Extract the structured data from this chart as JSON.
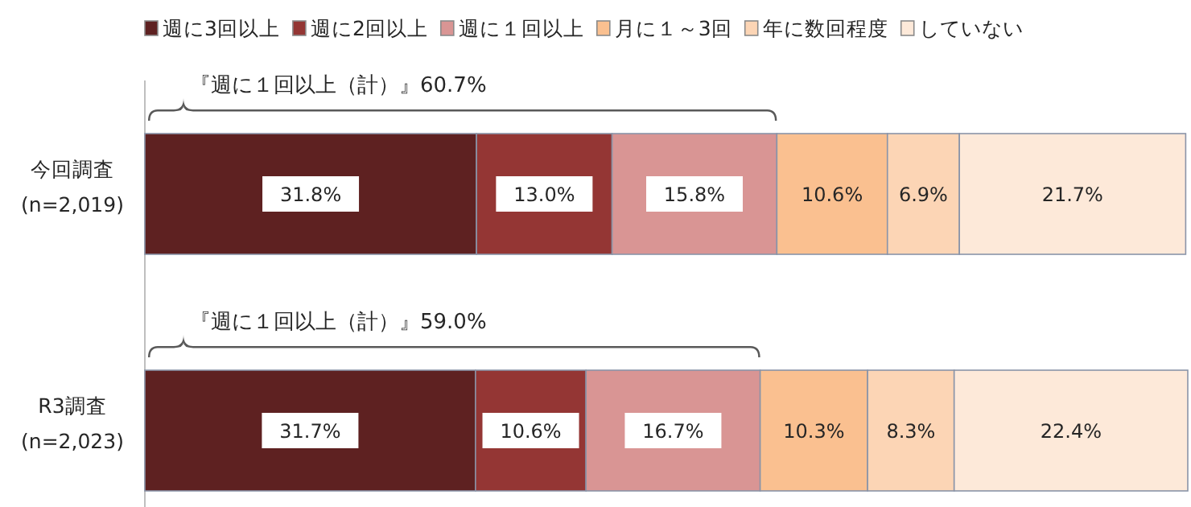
{
  "chart_data": {
    "type": "bar",
    "orientation": "horizontal",
    "stacked": true,
    "legend": "top",
    "tick_labels": "y",
    "categories": [
      "今回調査\n(n=2,019)",
      "R3調査\n(n=2,023)"
    ],
    "series": [
      {
        "name": "週に3回以上",
        "color": "#5e2121",
        "values": [
          31.8,
          31.7
        ],
        "value_labels": [
          "31.8%",
          "31.7%"
        ]
      },
      {
        "name": "週に2回以上",
        "color": "#943634",
        "values": [
          13.0,
          10.6
        ],
        "value_labels": [
          "13.0%",
          "10.6%"
        ]
      },
      {
        "name": "週に１回以上",
        "color": "#d99594",
        "values": [
          15.8,
          16.7
        ],
        "value_labels": [
          "15.8%",
          "16.7%"
        ]
      },
      {
        "name": "月に１～3回",
        "color": "#fac090",
        "values": [
          10.6,
          10.3
        ],
        "value_labels": [
          "10.6%",
          "10.3%"
        ]
      },
      {
        "name": "年に数回程度",
        "color": "#fcd5b5",
        "values": [
          6.9,
          8.3
        ],
        "value_labels": [
          "6.9%",
          "8.3%"
        ]
      },
      {
        "name": "していない",
        "color": "#fde9d9",
        "values": [
          21.7,
          22.4
        ],
        "value_labels": [
          "21.7%",
          "22.4%"
        ]
      }
    ],
    "annotations": [
      "『週に１回以上（計）』60.7%",
      "『週に１回以上（計）』59.0%"
    ]
  }
}
